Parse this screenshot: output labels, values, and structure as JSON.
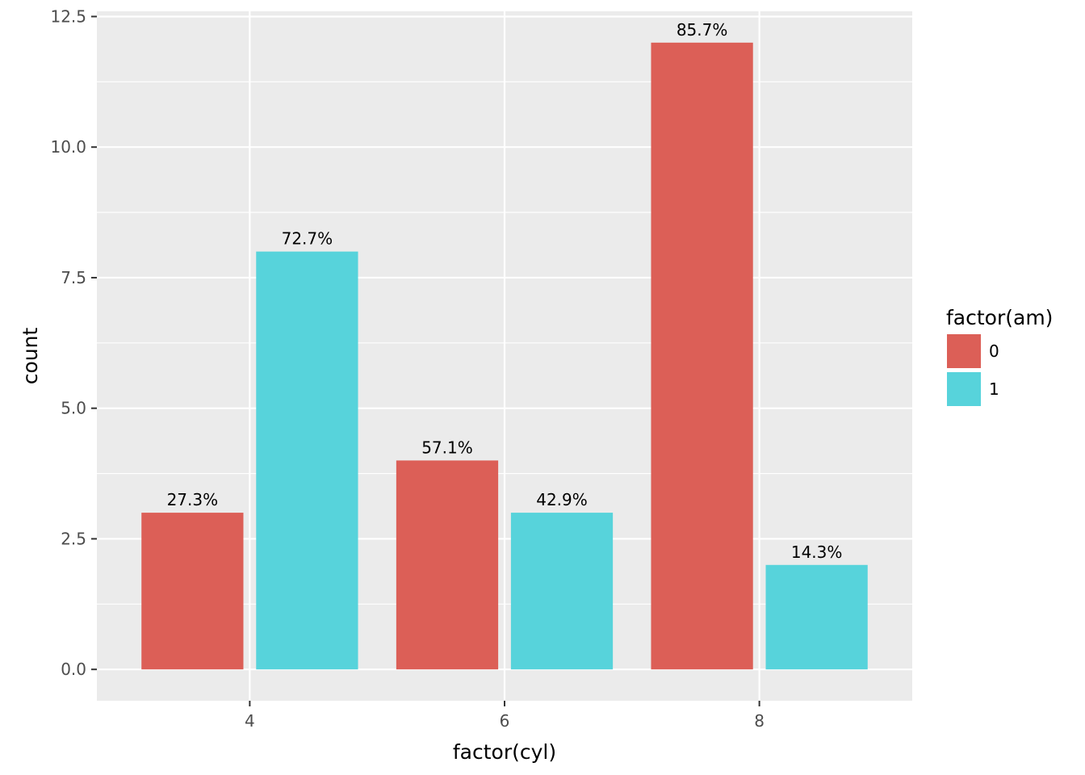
{
  "chart_data": {
    "type": "bar",
    "categories": [
      "4",
      "6",
      "8"
    ],
    "series": [
      {
        "name": "0",
        "color": "#DC5F57",
        "values": [
          3,
          4,
          12
        ],
        "labels": [
          "27.3%",
          "57.1%",
          "85.7%"
        ]
      },
      {
        "name": "1",
        "color": "#57D3DB",
        "values": [
          8,
          3,
          2
        ],
        "labels": [
          "72.7%",
          "42.9%",
          "14.3%"
        ]
      }
    ],
    "xlabel": "factor(cyl)",
    "ylabel": "count",
    "ylim": [
      -0.6,
      12.6
    ],
    "yticks": [
      "0.0",
      "2.5",
      "5.0",
      "7.5",
      "10.0",
      "12.5"
    ],
    "ytick_values": [
      0,
      2.5,
      5,
      7.5,
      10,
      12.5
    ],
    "grid": true,
    "legend": {
      "title": "factor(am)",
      "position": "right",
      "entries": [
        "0",
        "1"
      ]
    },
    "panel_color": "#EBEBEB",
    "grid_color": "#FFFFFF"
  }
}
